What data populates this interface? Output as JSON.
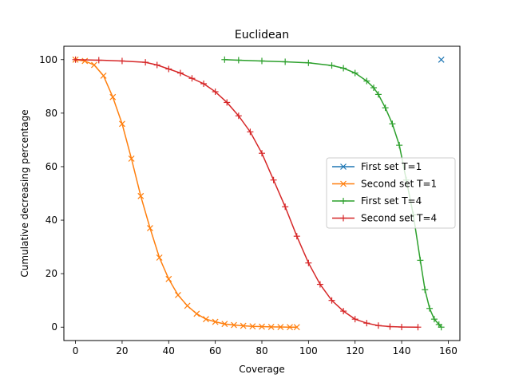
{
  "chart_data": {
    "type": "line",
    "title": "Euclidean",
    "xlabel": "Coverage",
    "ylabel": "Cumulative decreasing percentage",
    "xlim": [
      -5.0,
      165.0
    ],
    "ylim": [
      -5.0,
      105.0
    ],
    "xticks": [
      0,
      20,
      40,
      60,
      80,
      100,
      120,
      140,
      160
    ],
    "yticks": [
      0,
      20,
      40,
      60,
      80,
      100
    ],
    "grid": false,
    "legend_position": "center-right",
    "series": [
      {
        "name": "First set T=1",
        "color": "#1f77b4",
        "marker": "x",
        "line": false,
        "x": [
          157
        ],
        "y": [
          100
        ]
      },
      {
        "name": "Second set T=1",
        "color": "#ff7f0e",
        "marker": "x",
        "line": true,
        "x": [
          0,
          4,
          8,
          12,
          16,
          20,
          24,
          28,
          32,
          36,
          40,
          44,
          48,
          52,
          56,
          60,
          64,
          68,
          72,
          76,
          80,
          84,
          88,
          92,
          95
        ],
        "y": [
          100,
          99.5,
          98,
          94,
          86,
          76,
          63,
          49,
          37,
          26,
          18,
          12,
          8,
          5,
          3,
          2,
          1.2,
          0.8,
          0.5,
          0.3,
          0.2,
          0.1,
          0.05,
          0,
          0
        ]
      },
      {
        "name": "First set T=4",
        "color": "#2ca02c",
        "marker": "+",
        "line": true,
        "x": [
          64,
          70,
          80,
          90,
          100,
          110,
          115,
          120,
          125,
          128,
          130,
          133,
          136,
          139,
          142,
          145,
          148,
          150,
          152,
          154,
          156,
          157
        ],
        "y": [
          100,
          99.8,
          99.5,
          99.2,
          98.8,
          97.8,
          96.8,
          95,
          92,
          89.5,
          87,
          82,
          76,
          68,
          55,
          42,
          25,
          14,
          7,
          3,
          1,
          0
        ]
      },
      {
        "name": "Second set T=4",
        "color": "#d62728",
        "marker": "+",
        "line": true,
        "x": [
          0,
          10,
          20,
          30,
          35,
          40,
          45,
          50,
          55,
          60,
          65,
          70,
          75,
          80,
          85,
          90,
          95,
          100,
          105,
          110,
          115,
          120,
          125,
          130,
          135,
          140,
          147
        ],
        "y": [
          100,
          99.8,
          99.5,
          99,
          98,
          96.5,
          95,
          93,
          91,
          88,
          84,
          79,
          73,
          65,
          55,
          45,
          34,
          24,
          16,
          10,
          6,
          3,
          1.5,
          0.6,
          0.2,
          0.05,
          0
        ]
      }
    ]
  }
}
